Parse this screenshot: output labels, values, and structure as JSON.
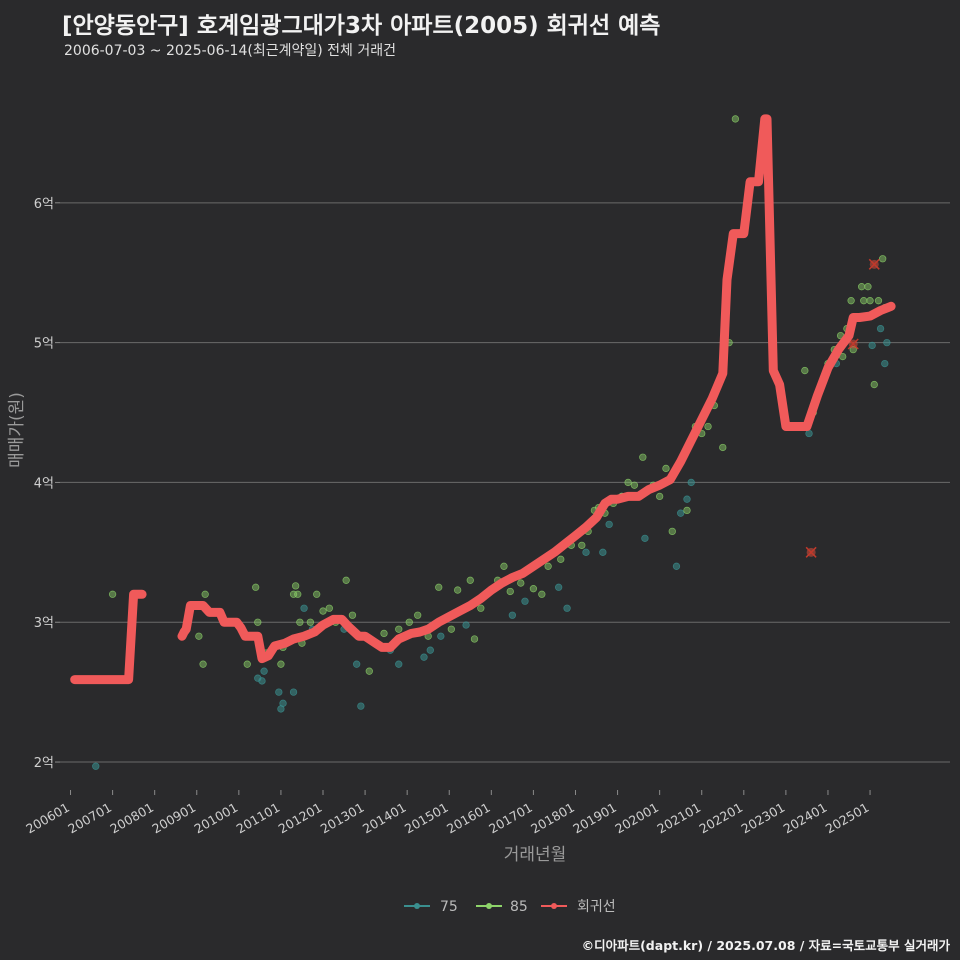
{
  "header": {
    "title": "[안양동안구] 호계임광그대가3차 아파트(2005) 회귀선 예측",
    "subtitle": "2006-07-03 ~ 2025-06-14(최근계약일) 전체 거래건"
  },
  "footer": {
    "credit": "©디아파트(dapt.kr) / 2025.07.08 / 자료=국토교통부 실거래가"
  },
  "colors": {
    "s75": "#3a8f8f",
    "s85": "#8ed46a",
    "regression": "#f05a5a",
    "outlier": "#d84a3a",
    "grid": "#6a6a6a"
  },
  "chart_data": {
    "type": "scatter",
    "title": "[안양동안구] 호계임광그대가3차 아파트(2005) 회귀선 예측",
    "xlabel": "거래년월",
    "ylabel": "매매가(원)",
    "xlim": [
      2005.75,
      2026.9
    ],
    "ylim": [
      1.8,
      6.95
    ],
    "yticks": [
      2,
      3,
      4,
      5,
      6
    ],
    "ytick_labels": [
      "2억",
      "3억",
      "4억",
      "5억",
      "6억"
    ],
    "xticks": [
      2006,
      2007,
      2008,
      2009,
      2010,
      2011,
      2012,
      2013,
      2014,
      2015,
      2016,
      2017,
      2018,
      2019,
      2020,
      2021,
      2022,
      2023,
      2024,
      2025
    ],
    "xtick_labels": [
      "200601",
      "200701",
      "200801",
      "200901",
      "201001",
      "201101",
      "201201",
      "201301",
      "201401",
      "201501",
      "201601",
      "201701",
      "201801",
      "201901",
      "202001",
      "202101",
      "202201",
      "202301",
      "202401",
      "202501"
    ],
    "legend": {
      "position": "bottom",
      "entries": [
        "75",
        "85",
        "회귀선"
      ]
    },
    "series": [
      {
        "name": "75",
        "points": [
          [
            2006.6,
            1.97
          ],
          [
            2010.45,
            2.6
          ],
          [
            2010.55,
            2.58
          ],
          [
            2010.6,
            2.65
          ],
          [
            2010.95,
            2.5
          ],
          [
            2011.0,
            2.38
          ],
          [
            2011.05,
            2.42
          ],
          [
            2011.3,
            2.5
          ],
          [
            2011.55,
            3.1
          ],
          [
            2011.75,
            2.95
          ],
          [
            2012.5,
            2.95
          ],
          [
            2012.8,
            2.7
          ],
          [
            2012.9,
            2.4
          ],
          [
            2013.6,
            2.8
          ],
          [
            2013.8,
            2.7
          ],
          [
            2014.4,
            2.75
          ],
          [
            2014.55,
            2.8
          ],
          [
            2014.8,
            2.9
          ],
          [
            2015.4,
            2.98
          ],
          [
            2016.5,
            3.05
          ],
          [
            2016.8,
            3.15
          ],
          [
            2017.6,
            3.25
          ],
          [
            2017.8,
            3.1
          ],
          [
            2018.25,
            3.5
          ],
          [
            2018.65,
            3.5
          ],
          [
            2018.8,
            3.7
          ],
          [
            2019.1,
            3.9
          ],
          [
            2019.65,
            3.6
          ],
          [
            2020.4,
            3.4
          ],
          [
            2020.5,
            3.78
          ],
          [
            2020.65,
            3.88
          ],
          [
            2020.75,
            4.0
          ],
          [
            2023.55,
            4.35
          ],
          [
            2024.2,
            4.85
          ],
          [
            2025.05,
            4.98
          ],
          [
            2025.25,
            5.1
          ],
          [
            2025.35,
            4.85
          ],
          [
            2025.4,
            5.0
          ]
        ]
      },
      {
        "name": "85",
        "points": [
          [
            2007.0,
            3.2
          ],
          [
            2009.05,
            2.9
          ],
          [
            2009.15,
            2.7
          ],
          [
            2009.2,
            3.2
          ],
          [
            2010.2,
            2.7
          ],
          [
            2010.4,
            3.25
          ],
          [
            2010.45,
            3.0
          ],
          [
            2010.65,
            2.78
          ],
          [
            2011.05,
            2.82
          ],
          [
            2011.0,
            2.7
          ],
          [
            2011.3,
            3.2
          ],
          [
            2011.35,
            3.26
          ],
          [
            2011.4,
            3.2
          ],
          [
            2011.45,
            3.0
          ],
          [
            2011.5,
            2.85
          ],
          [
            2011.7,
            3.0
          ],
          [
            2011.85,
            3.2
          ],
          [
            2012.0,
            3.08
          ],
          [
            2012.15,
            3.1
          ],
          [
            2012.3,
            3.0
          ],
          [
            2012.55,
            3.3
          ],
          [
            2012.7,
            3.05
          ],
          [
            2013.1,
            2.65
          ],
          [
            2013.45,
            2.92
          ],
          [
            2013.8,
            2.95
          ],
          [
            2014.05,
            3.0
          ],
          [
            2014.25,
            3.05
          ],
          [
            2014.5,
            2.9
          ],
          [
            2014.75,
            3.25
          ],
          [
            2015.05,
            2.95
          ],
          [
            2015.2,
            3.23
          ],
          [
            2015.5,
            3.3
          ],
          [
            2015.6,
            2.88
          ],
          [
            2015.75,
            3.1
          ],
          [
            2016.15,
            3.3
          ],
          [
            2016.3,
            3.4
          ],
          [
            2016.45,
            3.22
          ],
          [
            2016.7,
            3.28
          ],
          [
            2017.0,
            3.24
          ],
          [
            2017.2,
            3.2
          ],
          [
            2017.35,
            3.4
          ],
          [
            2017.5,
            3.5
          ],
          [
            2017.65,
            3.45
          ],
          [
            2017.9,
            3.55
          ],
          [
            2018.15,
            3.55
          ],
          [
            2018.3,
            3.65
          ],
          [
            2018.45,
            3.8
          ],
          [
            2018.55,
            3.82
          ],
          [
            2018.7,
            3.78
          ],
          [
            2018.9,
            3.85
          ],
          [
            2019.1,
            3.9
          ],
          [
            2019.25,
            4.0
          ],
          [
            2019.4,
            3.98
          ],
          [
            2019.6,
            4.18
          ],
          [
            2019.85,
            3.98
          ],
          [
            2020.0,
            3.9
          ],
          [
            2020.15,
            4.1
          ],
          [
            2020.3,
            3.65
          ],
          [
            2020.5,
            4.15
          ],
          [
            2020.65,
            3.8
          ],
          [
            2020.85,
            4.4
          ],
          [
            2021.0,
            4.35
          ],
          [
            2021.15,
            4.4
          ],
          [
            2021.3,
            4.55
          ],
          [
            2021.5,
            4.25
          ],
          [
            2021.65,
            5.0
          ],
          [
            2021.8,
            6.6
          ],
          [
            2023.45,
            4.8
          ],
          [
            2023.65,
            4.5
          ],
          [
            2024.0,
            4.85
          ],
          [
            2024.15,
            4.95
          ],
          [
            2024.3,
            5.05
          ],
          [
            2024.35,
            4.9
          ],
          [
            2024.45,
            5.1
          ],
          [
            2024.5,
            5.05
          ],
          [
            2024.55,
            5.3
          ],
          [
            2024.6,
            4.95
          ],
          [
            2024.8,
            5.4
          ],
          [
            2024.85,
            5.3
          ],
          [
            2024.95,
            5.4
          ],
          [
            2025.0,
            5.3
          ],
          [
            2025.1,
            4.7
          ],
          [
            2025.2,
            5.3
          ],
          [
            2025.3,
            5.6
          ],
          [
            2025.35,
            5.25
          ]
        ]
      },
      {
        "name": "회귀선",
        "segments": [
          [
            [
              2006.1,
              2.59
            ],
            [
              2007.25,
              2.59
            ],
            [
              2007.38,
              2.59
            ],
            [
              2007.5,
              3.2
            ],
            [
              2007.7,
              3.2
            ]
          ],
          [
            [
              2008.65,
              2.9
            ],
            [
              2008.7,
              2.93
            ],
            [
              2008.75,
              2.95
            ],
            [
              2008.85,
              3.12
            ],
            [
              2009.15,
              3.12
            ],
            [
              2009.3,
              3.07
            ],
            [
              2009.55,
              3.07
            ],
            [
              2009.65,
              3.0
            ],
            [
              2009.95,
              3.0
            ],
            [
              2010.05,
              2.96
            ],
            [
              2010.15,
              2.9
            ],
            [
              2010.45,
              2.9
            ],
            [
              2010.55,
              2.74
            ],
            [
              2010.7,
              2.76
            ],
            [
              2010.85,
              2.83
            ],
            [
              2011.1,
              2.85
            ],
            [
              2011.3,
              2.88
            ],
            [
              2011.55,
              2.9
            ],
            [
              2011.8,
              2.93
            ],
            [
              2012.0,
              2.98
            ],
            [
              2012.25,
              3.02
            ],
            [
              2012.45,
              3.02
            ],
            [
              2012.6,
              2.97
            ],
            [
              2012.85,
              2.9
            ],
            [
              2013.0,
              2.9
            ],
            [
              2013.25,
              2.85
            ],
            [
              2013.4,
              2.82
            ],
            [
              2013.6,
              2.82
            ],
            [
              2013.8,
              2.88
            ],
            [
              2014.1,
              2.92
            ],
            [
              2014.3,
              2.93
            ],
            [
              2014.5,
              2.95
            ],
            [
              2014.75,
              3.0
            ],
            [
              2015.0,
              3.04
            ],
            [
              2015.25,
              3.08
            ],
            [
              2015.5,
              3.12
            ],
            [
              2015.75,
              3.17
            ],
            [
              2016.0,
              3.23
            ],
            [
              2016.25,
              3.28
            ],
            [
              2016.5,
              3.32
            ],
            [
              2016.75,
              3.35
            ],
            [
              2017.0,
              3.4
            ],
            [
              2017.25,
              3.45
            ],
            [
              2017.5,
              3.5
            ],
            [
              2017.75,
              3.56
            ],
            [
              2018.0,
              3.62
            ],
            [
              2018.25,
              3.68
            ],
            [
              2018.5,
              3.75
            ],
            [
              2018.7,
              3.85
            ],
            [
              2018.85,
              3.88
            ],
            [
              2019.0,
              3.88
            ],
            [
              2019.25,
              3.9
            ],
            [
              2019.5,
              3.9
            ],
            [
              2019.75,
              3.95
            ],
            [
              2020.0,
              3.98
            ],
            [
              2020.25,
              4.02
            ],
            [
              2020.5,
              4.15
            ],
            [
              2020.75,
              4.3
            ],
            [
              2021.0,
              4.45
            ],
            [
              2021.25,
              4.6
            ],
            [
              2021.5,
              4.78
            ],
            [
              2021.6,
              5.45
            ],
            [
              2021.75,
              5.78
            ],
            [
              2022.0,
              5.78
            ],
            [
              2022.15,
              6.15
            ],
            [
              2022.35,
              6.15
            ],
            [
              2022.5,
              6.6
            ],
            [
              2022.55,
              6.6
            ],
            [
              2022.7,
              4.8
            ],
            [
              2022.85,
              4.7
            ],
            [
              2023.0,
              4.4
            ],
            [
              2023.25,
              4.4
            ],
            [
              2023.5,
              4.4
            ],
            [
              2023.75,
              4.62
            ],
            [
              2024.0,
              4.82
            ],
            [
              2024.25,
              4.95
            ],
            [
              2024.5,
              5.05
            ],
            [
              2024.6,
              5.18
            ],
            [
              2024.75,
              5.18
            ],
            [
              2025.0,
              5.19
            ],
            [
              2025.25,
              5.23
            ],
            [
              2025.5,
              5.26
            ]
          ]
        ]
      }
    ],
    "outliers": [
      [
        2023.6,
        3.5
      ],
      [
        2024.6,
        4.99
      ],
      [
        2025.1,
        5.56
      ]
    ]
  }
}
